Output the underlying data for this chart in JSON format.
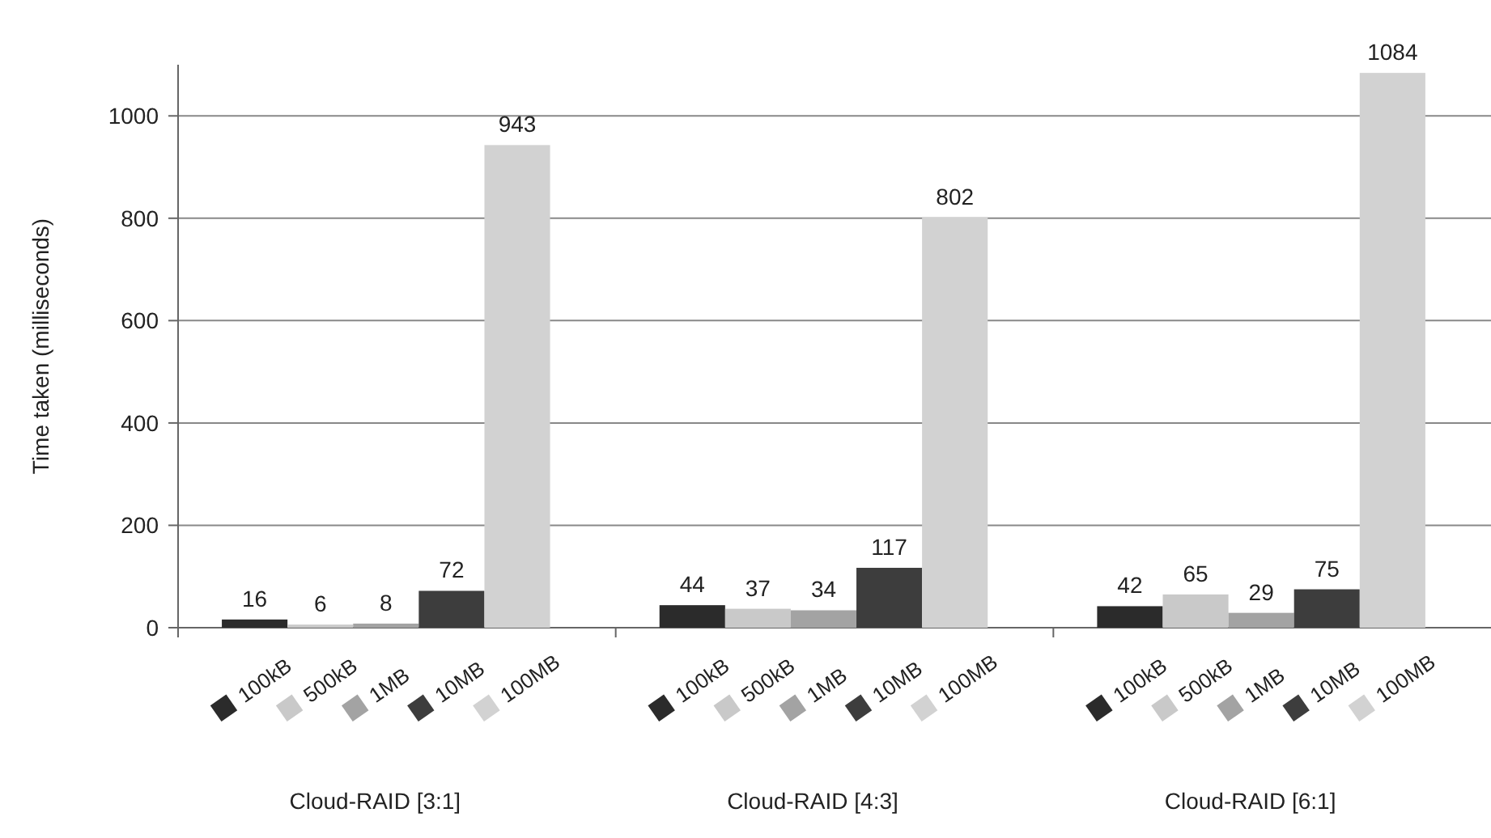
{
  "chart_data": {
    "type": "bar",
    "ylabel": "Time taken (milliseconds)",
    "categories": [
      "Cloud-RAID [3:1]",
      "Cloud-RAID [4:3]",
      "Cloud-RAID [6:1]"
    ],
    "series": [
      {
        "name": "100kB",
        "color": "#2b2b2b",
        "values": [
          16,
          44,
          42
        ]
      },
      {
        "name": "500kB",
        "color": "#c9c9c9",
        "values": [
          6,
          37,
          65
        ]
      },
      {
        "name": "1MB",
        "color": "#a3a3a3",
        "values": [
          8,
          34,
          29
        ]
      },
      {
        "name": "10MB",
        "color": "#3d3d3d",
        "values": [
          72,
          117,
          75
        ]
      },
      {
        "name": "100MB",
        "color": "#d2d2d2",
        "values": [
          943,
          802,
          1084
        ]
      }
    ],
    "ylim": [
      0,
      1100
    ],
    "yticks": [
      0,
      200,
      400,
      600,
      800,
      1000
    ],
    "grid": "y",
    "data_labels": true,
    "legend": "bottom"
  }
}
